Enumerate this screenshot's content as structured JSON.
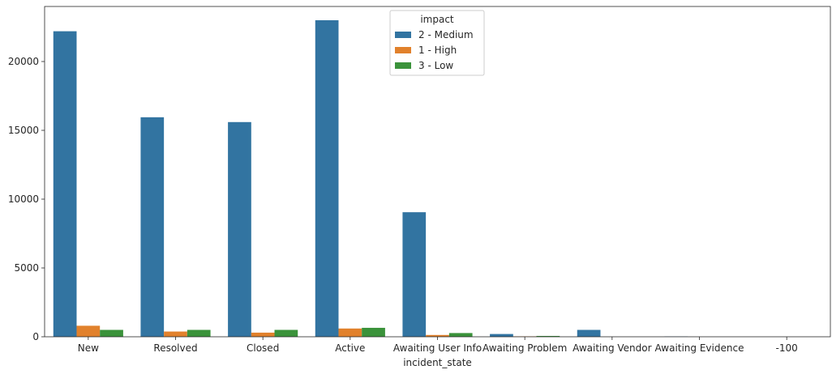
{
  "chart_data": {
    "type": "bar",
    "xlabel": "incident_state",
    "ylabel": "",
    "categories": [
      "New",
      "Resolved",
      "Closed",
      "Active",
      "Awaiting User Info",
      "Awaiting Problem",
      "Awaiting Vendor",
      "Awaiting Evidence",
      "-100"
    ],
    "series": [
      {
        "name": "2 - Medium",
        "color": "#3274a1",
        "values": [
          22200,
          15950,
          15600,
          23000,
          9050,
          200,
          500,
          20,
          0
        ]
      },
      {
        "name": "1 - High",
        "color": "#e1812c",
        "values": [
          800,
          380,
          300,
          600,
          130,
          30,
          0,
          0,
          0
        ]
      },
      {
        "name": "3 - Low",
        "color": "#3a923a",
        "values": [
          500,
          500,
          500,
          650,
          270,
          60,
          0,
          0,
          0
        ]
      }
    ],
    "ylim": [
      0,
      24000
    ],
    "yticks": [
      0,
      5000,
      10000,
      15000,
      20000
    ],
    "legend": {
      "title": "impact",
      "placement": "top-center"
    },
    "grid": false
  }
}
